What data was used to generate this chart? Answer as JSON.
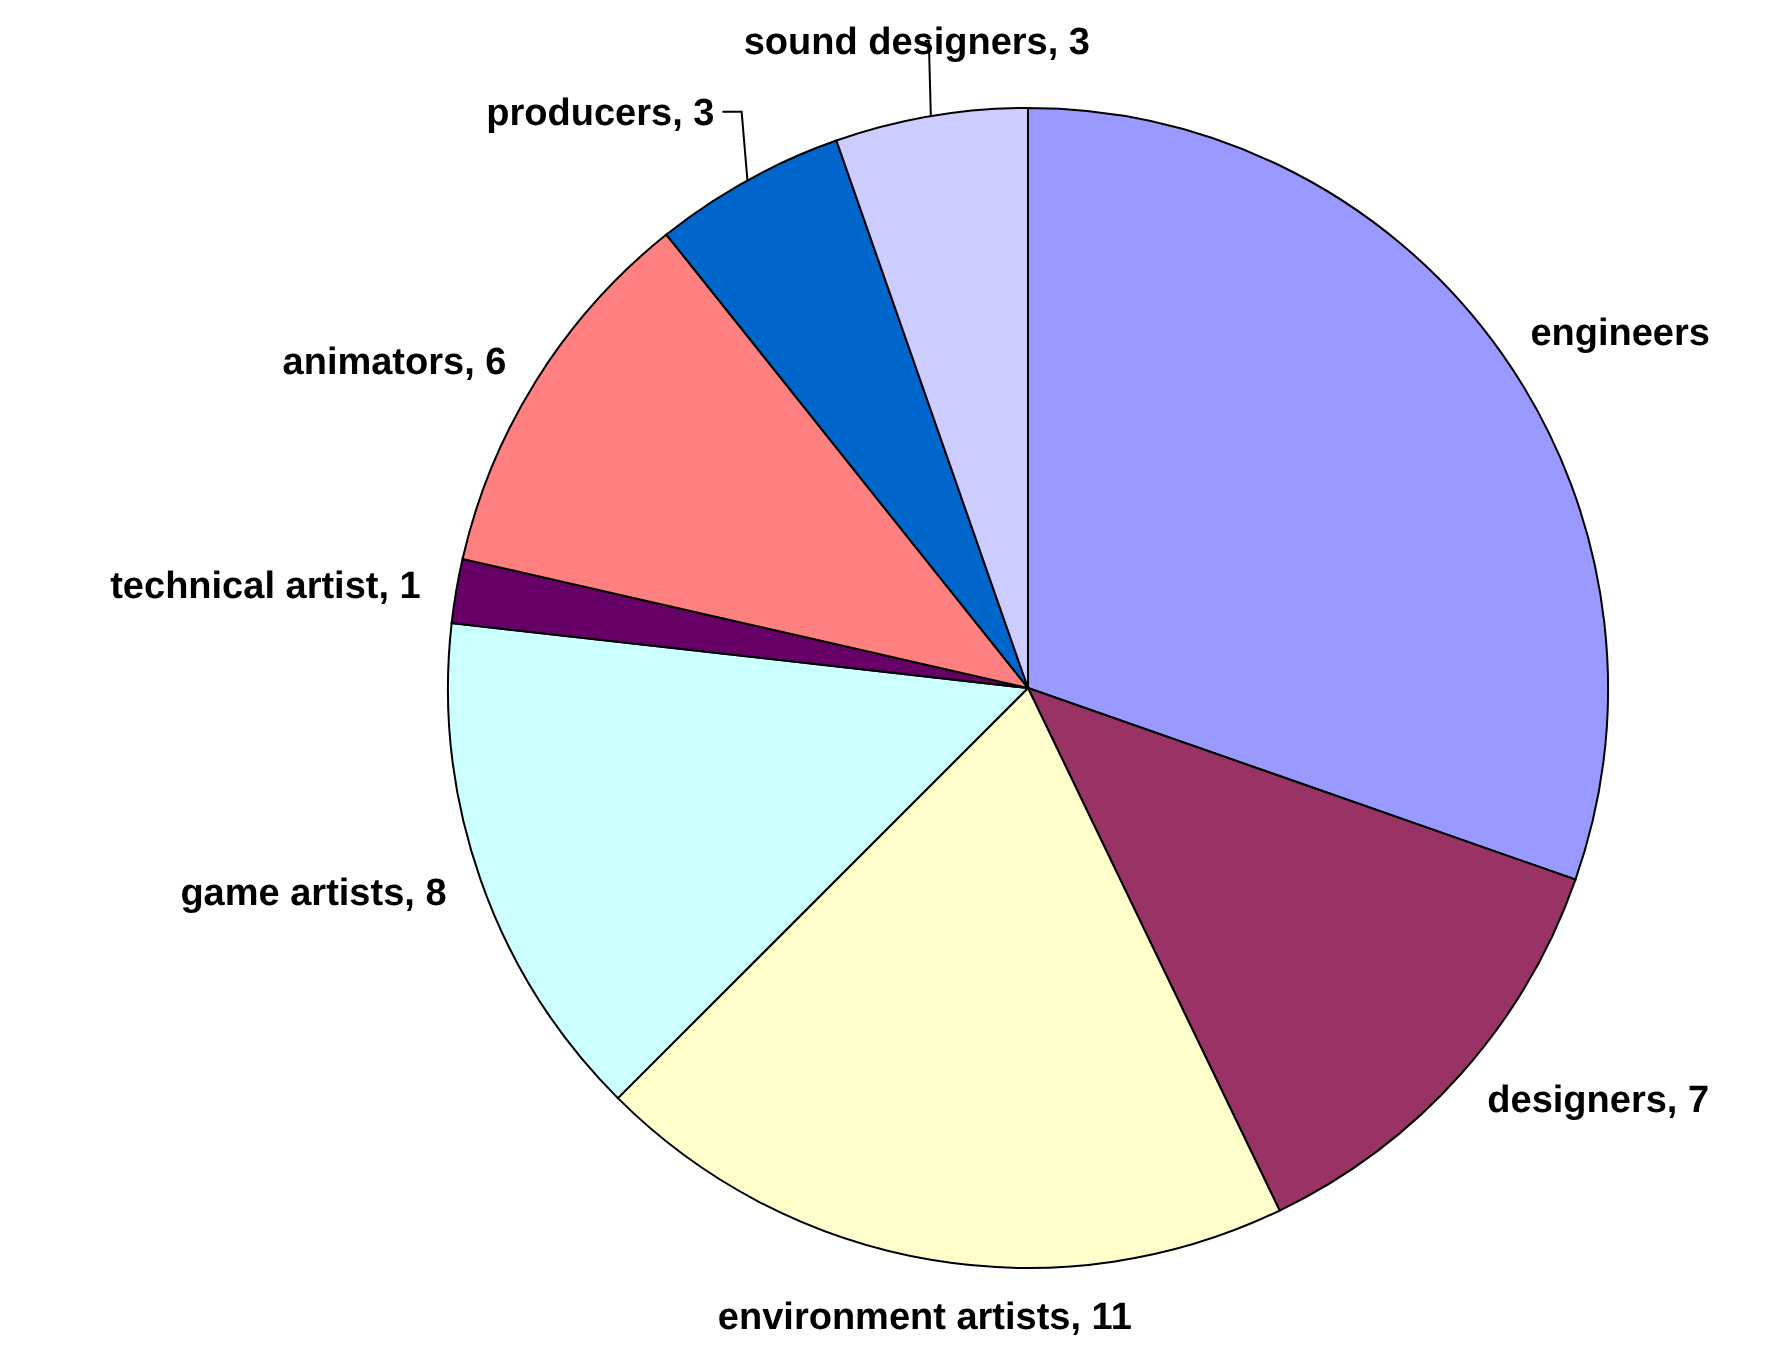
{
  "chart_data": {
    "type": "pie",
    "categories": [
      "engineers",
      "designers",
      "environment artists",
      "game artists",
      "technical artist",
      "animators",
      "producers",
      "sound designers"
    ],
    "values": [
      17,
      7,
      11,
      8,
      1,
      6,
      3,
      3
    ],
    "value_labels": [
      null,
      "7",
      "11",
      "8",
      "1",
      "6",
      "3",
      "3"
    ],
    "colors": [
      "#9999ff",
      "#993366",
      "#ffffcc",
      "#ccffff",
      "#660066",
      "#ff8080",
      "#0066cc",
      "#ccccff"
    ]
  }
}
